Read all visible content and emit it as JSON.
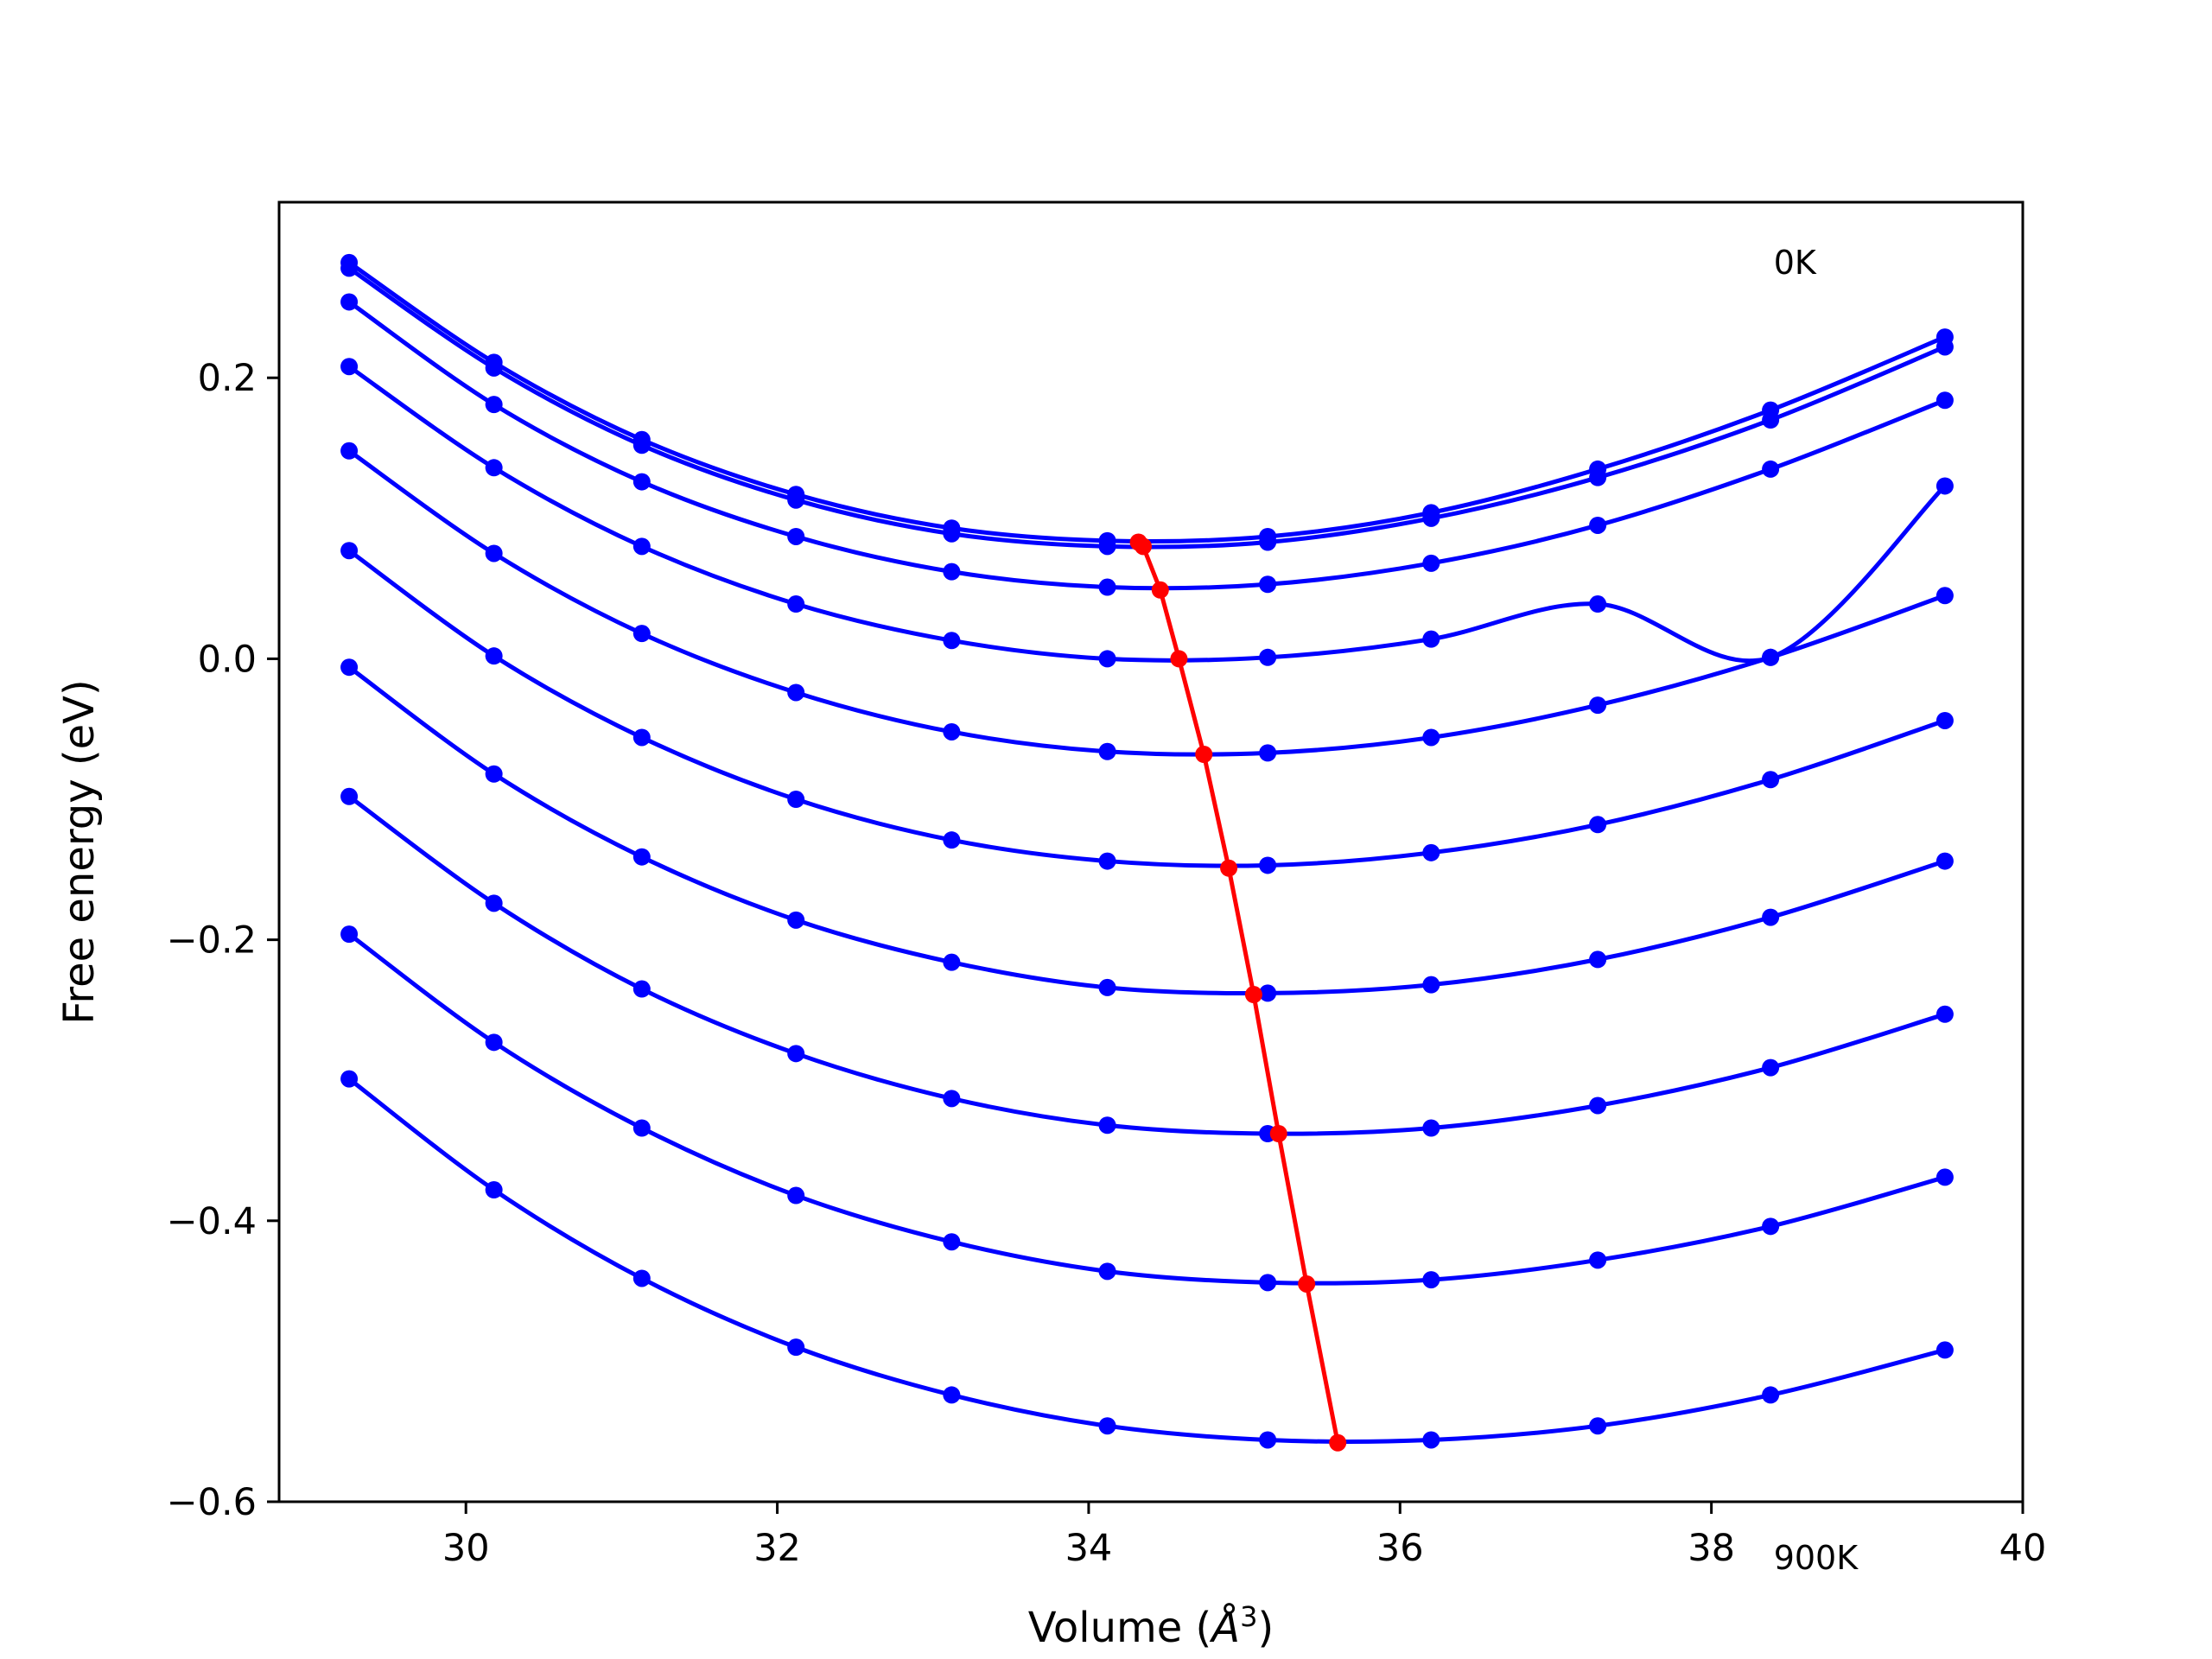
{
  "chart_data": {
    "type": "line",
    "xlabel_prefix": "Volume (",
    "xlabel_unit_base": "Å",
    "xlabel_unit_exp": "3",
    "xlabel_suffix": ")",
    "ylabel": "Free energy (eV)",
    "xlim": [
      28.8,
      40
    ],
    "ylim": [
      -0.6,
      0.325
    ],
    "xticks": [
      30,
      32,
      34,
      36,
      38,
      40
    ],
    "xtick_labels": [
      "30",
      "32",
      "34",
      "36",
      "38",
      "40"
    ],
    "yticks": [
      -0.6,
      -0.4,
      -0.2,
      0.0,
      0.2
    ],
    "ytick_labels": [
      "−0.6",
      "−0.4",
      "−0.2",
      "0.0",
      "0.2"
    ],
    "grid": false,
    "colors": {
      "curves": "#0000ff",
      "minima": "#ff0000",
      "frame": "#000000"
    },
    "annotations": [
      {
        "text": "0K",
        "x": 38.4,
        "y": 0.282
      },
      {
        "text": "900K",
        "x": 38.4,
        "y": -0.64
      }
    ],
    "x": [
      29.25,
      30.18,
      31.13,
      32.12,
      33.12,
      34.12,
      35.15,
      36.2,
      37.27,
      38.38,
      39.5
    ],
    "series": [
      {
        "values": [
          0.282,
          0.211,
          0.156,
          0.117,
          0.093,
          0.084,
          0.087,
          0.104,
          0.135,
          0.177,
          0.229
        ]
      },
      {
        "values": [
          0.278,
          0.207,
          0.152,
          0.113,
          0.089,
          0.08,
          0.083,
          0.1,
          0.129,
          0.17,
          0.222
        ]
      },
      {
        "values": [
          0.254,
          0.181,
          0.126,
          0.087,
          0.062,
          0.051,
          0.053,
          0.068,
          0.095,
          0.135,
          0.184
        ]
      },
      {
        "values": [
          0.208,
          0.136,
          0.08,
          0.039,
          0.013,
          0.0,
          0.001,
          0.014,
          0.039,
          0.001,
          0.123
        ]
      },
      {
        "values": [
          0.148,
          0.075,
          0.018,
          -0.024,
          -0.052,
          -0.066,
          -0.067,
          -0.056,
          -0.033,
          0.001,
          0.045
        ]
      },
      {
        "values": [
          0.077,
          0.002,
          -0.056,
          -0.1,
          -0.129,
          -0.144,
          -0.147,
          -0.138,
          -0.118,
          -0.086,
          -0.044
        ]
      },
      {
        "values": [
          -0.006,
          -0.082,
          -0.141,
          -0.186,
          -0.216,
          -0.234,
          -0.238,
          -0.232,
          -0.214,
          -0.184,
          -0.144
        ]
      },
      {
        "values": [
          -0.098,
          -0.174,
          -0.235,
          -0.281,
          -0.313,
          -0.332,
          -0.338,
          -0.334,
          -0.318,
          -0.291,
          -0.253
        ]
      },
      {
        "values": [
          -0.196,
          -0.273,
          -0.334,
          -0.382,
          -0.415,
          -0.436,
          -0.444,
          -0.442,
          -0.428,
          -0.404,
          -0.369
        ]
      },
      {
        "values": [
          -0.299,
          -0.378,
          -0.441,
          -0.49,
          -0.524,
          -0.546,
          -0.556,
          -0.556,
          -0.546,
          -0.524,
          -0.492
        ]
      }
    ],
    "minima": {
      "x": [
        34.32,
        34.35,
        34.46,
        34.58,
        34.74,
        34.9,
        35.06,
        35.22,
        35.4,
        35.6
      ],
      "y": [
        0.083,
        0.08,
        0.049,
        0.0,
        -0.068,
        -0.149,
        -0.239,
        -0.338,
        -0.445,
        -0.558
      ]
    }
  }
}
